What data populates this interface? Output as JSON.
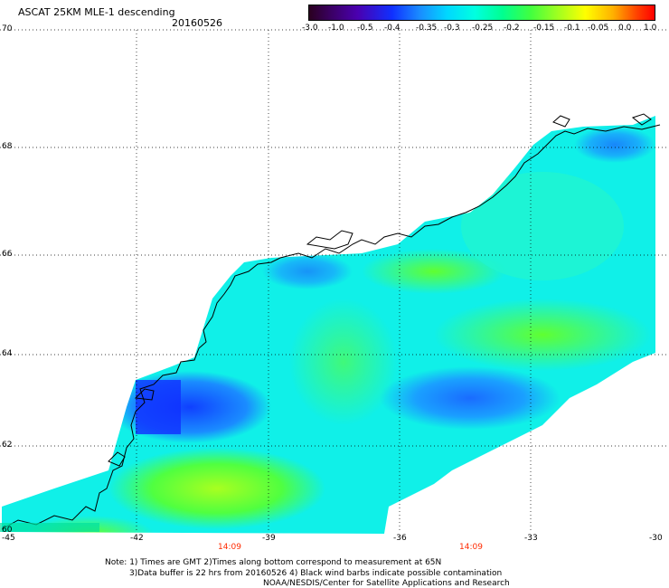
{
  "header": {
    "title": "ASCAT 25KM MLE-1 descending",
    "date": "20160526"
  },
  "colorbar": {
    "labels": [
      "-3.0",
      "-1.0",
      "-0.5",
      "-0.4",
      "-0.35",
      "-0.3",
      "-0.25",
      "-0.2",
      "-0.15",
      "-0.1",
      "-0.05",
      "0.0",
      "1.0"
    ]
  },
  "axes": {
    "lat_ticks": [
      "70",
      "68",
      "66",
      "64",
      "62",
      "60"
    ],
    "lon_ticks": [
      "-45",
      "-42",
      "-39",
      "-36",
      "-33",
      "-30"
    ],
    "times": [
      "14:09",
      "14:09"
    ]
  },
  "notes": {
    "line1": "Note: 1) Times are GMT 2)Times along bottom correspond to measurement at 65N",
    "line2": "3)Data buffer is 22 hrs from 20160526 4) Black wind barbs indicate possible contamination",
    "line3": "NOAA/NESDIS/Center for Satellite Applications and Research"
  },
  "colors": {
    "low": "#1030ff",
    "mid": "#00ffe0",
    "high": "#40ff40",
    "coast": "#000000"
  }
}
